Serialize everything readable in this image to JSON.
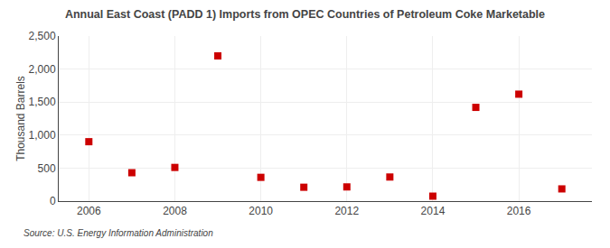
{
  "chart_data": {
    "type": "scatter",
    "title": "Annual East Coast (PADD 1) Imports from OPEC Countries of Petroleum Coke Marketable",
    "ylabel": "Thousand Barrels",
    "source": "Source: U.S. Energy Information Administration",
    "x": [
      2006,
      2007,
      2008,
      2009,
      2010,
      2011,
      2012,
      2013,
      2014,
      2015,
      2016,
      2017
    ],
    "values": [
      900,
      430,
      510,
      2200,
      360,
      210,
      215,
      365,
      75,
      1420,
      1620,
      185
    ],
    "color": "#cc0000",
    "marker": "square",
    "xlim": [
      2005.3,
      2017.7
    ],
    "xticks": [
      2006,
      2008,
      2010,
      2012,
      2014,
      2016
    ],
    "ylim": [
      0,
      2500
    ],
    "yticks": [
      0,
      500,
      {
        "value": 1000,
        "label": "1,000"
      },
      {
        "value": 1500,
        "label": "1,500"
      },
      {
        "value": 2000,
        "label": "2,000"
      },
      {
        "value": 2500,
        "label": "2,500"
      }
    ],
    "grid": true
  }
}
